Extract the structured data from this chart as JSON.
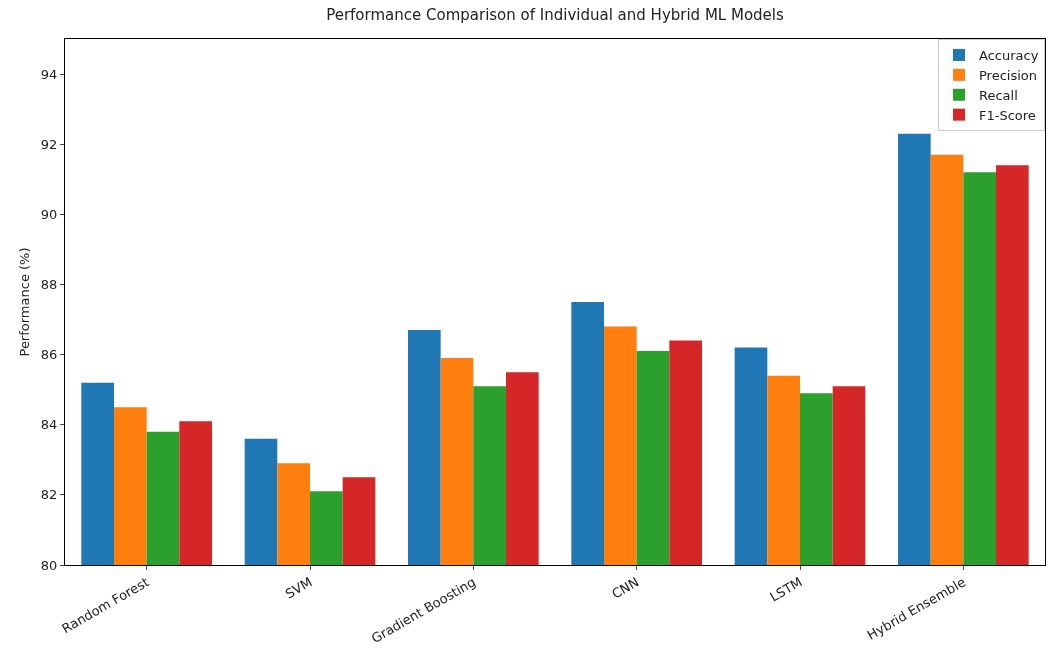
{
  "chart_data": {
    "type": "bar",
    "title": "Performance Comparison of Individual and Hybrid ML Models",
    "ylabel": "Performance (%)",
    "categories": [
      "Random Forest",
      "SVM",
      "Gradient Boosting",
      "CNN",
      "LSTM",
      "Hybrid Ensemble"
    ],
    "series": [
      {
        "name": "Accuracy",
        "color": "#1f77b4",
        "values": [
          85.2,
          83.6,
          86.7,
          87.5,
          86.2,
          92.3
        ]
      },
      {
        "name": "Precision",
        "color": "#ff7f0e",
        "values": [
          84.5,
          82.9,
          85.9,
          86.8,
          85.4,
          91.7
        ]
      },
      {
        "name": "Recall",
        "color": "#2ca02c",
        "values": [
          83.8,
          82.1,
          85.1,
          86.1,
          84.9,
          91.2
        ]
      },
      {
        "name": "F1-Score",
        "color": "#d62728",
        "values": [
          84.1,
          82.5,
          85.5,
          86.4,
          85.1,
          91.4
        ]
      }
    ],
    "ylim": [
      80,
      95
    ],
    "yticks": [
      80,
      82,
      84,
      86,
      88,
      90,
      92,
      94
    ],
    "grid": false,
    "legend": "top right"
  }
}
